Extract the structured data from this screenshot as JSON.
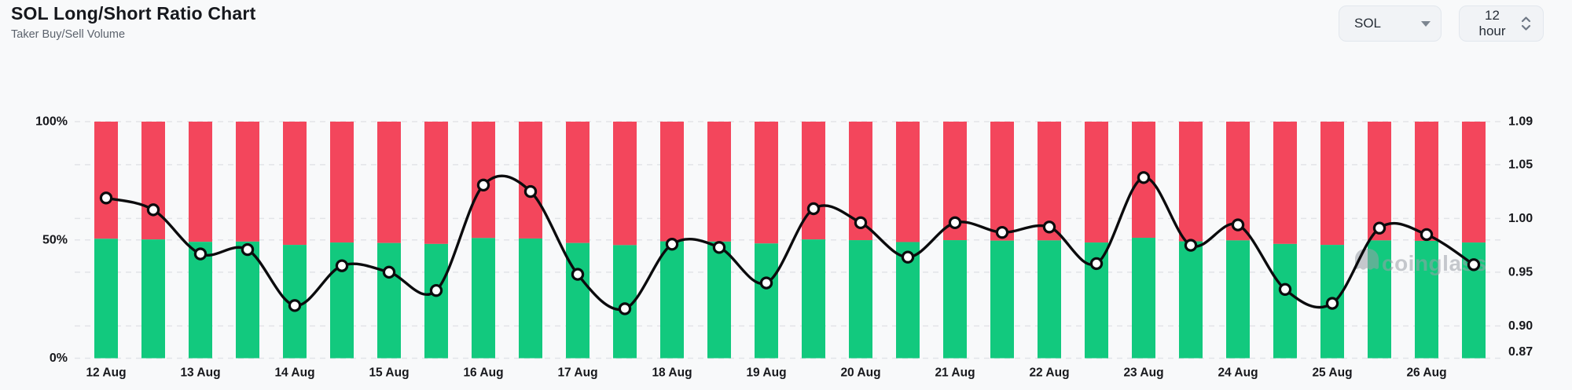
{
  "header": {
    "title": "SOL Long/Short Ratio Chart",
    "subtitle": "Taker Buy/Sell Volume",
    "symbol_select": {
      "value": "SOL"
    },
    "interval_select": {
      "value": "12 hour"
    }
  },
  "watermark": "coinglass",
  "colors": {
    "buy_green": "#12c97e",
    "sell_red": "#f3465c",
    "line_black": "#0b0b0d",
    "grid": "#e2e4e8",
    "axis_text": "#17181c",
    "watermark_gray": "#9ba0a8"
  },
  "chart_data": {
    "type": "bar",
    "subtype": "stacked-percent-bars-with-ratio-line",
    "title": "SOL Long/Short Ratio Chart",
    "interval": "12 hour",
    "bars_per_category": 2,
    "categories": [
      "12 Aug",
      "13 Aug",
      "14 Aug",
      "15 Aug",
      "16 Aug",
      "17 Aug",
      "18 Aug",
      "19 Aug",
      "20 Aug",
      "21 Aug",
      "22 Aug",
      "23 Aug",
      "24 Aug",
      "25 Aug",
      "26 Aug"
    ],
    "series": [
      {
        "name": "Taker Buy %",
        "type": "bar",
        "color": "#12c97e",
        "values": [
          50.5,
          50.2,
          49.2,
          49.3,
          47.9,
          48.9,
          48.7,
          48.3,
          50.8,
          50.6,
          48.7,
          47.8,
          49.4,
          49.3,
          48.5,
          50.2,
          49.9,
          49.1,
          49.9,
          49.7,
          49.8,
          48.9,
          50.9,
          49.4,
          49.8,
          48.3,
          47.9,
          49.8,
          49.6,
          48.9
        ]
      },
      {
        "name": "Taker Sell %",
        "type": "bar",
        "color": "#f3465c",
        "values": [
          49.5,
          49.8,
          50.8,
          50.7,
          52.1,
          51.1,
          51.3,
          51.7,
          49.2,
          49.4,
          51.3,
          52.2,
          50.6,
          50.7,
          51.5,
          49.8,
          50.1,
          50.9,
          50.1,
          50.3,
          50.2,
          51.1,
          49.1,
          50.6,
          50.2,
          51.7,
          52.1,
          50.2,
          50.4,
          51.1
        ]
      },
      {
        "name": "Long/Short Ratio",
        "type": "line",
        "color": "#0b0b0d",
        "marker": "circle",
        "values": [
          1.019,
          1.008,
          0.967,
          0.971,
          0.919,
          0.956,
          0.95,
          0.933,
          1.031,
          1.025,
          0.948,
          0.916,
          0.976,
          0.973,
          0.94,
          1.009,
          0.996,
          0.964,
          0.996,
          0.987,
          0.992,
          0.958,
          1.038,
          0.975,
          0.994,
          0.934,
          0.921,
          0.991,
          0.985,
          0.957
        ]
      }
    ],
    "left_axis": {
      "unit": "%",
      "ticks": [
        100,
        50,
        0
      ],
      "min": 0,
      "max": 100
    },
    "right_axis": {
      "ticks": [
        1.09,
        1.05,
        1.0,
        0.95,
        0.9,
        0.87
      ],
      "min": 0.87,
      "max": 1.09
    },
    "grid": "dashed-horizontal",
    "legend": "none"
  }
}
